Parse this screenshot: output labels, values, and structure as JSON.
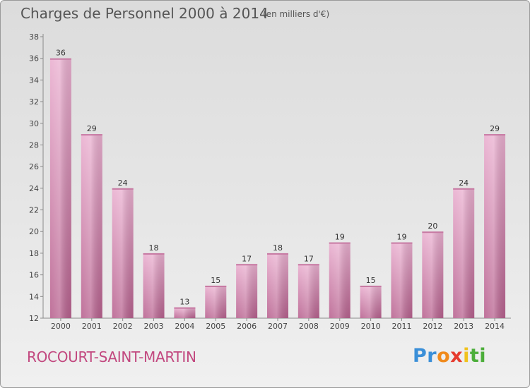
{
  "chart_data": {
    "type": "bar",
    "title": "Charges de Personnel 2000 à 2014",
    "subtitle": "(en milliers d'€)",
    "categories": [
      "2000",
      "2001",
      "2002",
      "2003",
      "2004",
      "2005",
      "2006",
      "2007",
      "2008",
      "2009",
      "2010",
      "2011",
      "2012",
      "2013",
      "2014"
    ],
    "values": [
      36,
      29,
      24,
      18,
      13,
      15,
      17,
      18,
      17,
      19,
      15,
      19,
      20,
      24,
      29
    ],
    "ylim": [
      12,
      38
    ],
    "yticks": [
      12,
      14,
      16,
      18,
      20,
      22,
      24,
      26,
      28,
      30,
      32,
      34,
      36,
      38
    ],
    "xlabel": "",
    "ylabel": "",
    "grid": false,
    "bar_color": "#d98ab4"
  },
  "footer": {
    "commune": "ROCOURT-SAINT-MARTIN",
    "logo": {
      "p1": "Pr",
      "p2": "o",
      "p3": "x",
      "p4": "i",
      "p5": "ti"
    }
  }
}
